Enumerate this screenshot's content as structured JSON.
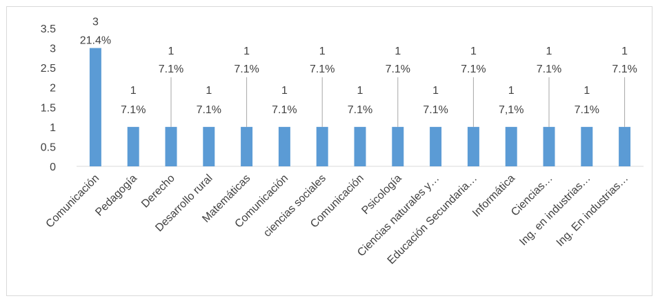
{
  "chart_data": {
    "type": "bar",
    "title": "",
    "xlabel": "",
    "ylabel": "",
    "ylim": [
      0,
      3.5
    ],
    "yticks": [
      0,
      0.5,
      1,
      1.5,
      2,
      2.5,
      3,
      3.5
    ],
    "ytick_labels": [
      "0",
      "0.5",
      "1",
      "1.5",
      "2",
      "2.5",
      "3",
      "3.5"
    ],
    "grid": true,
    "legend": "none",
    "bar_color": "#5b9bd5",
    "categories": [
      "Comunicación",
      "Pedagogía",
      "Derecho",
      "Desarrollo rural",
      "Matemáticas",
      "Comunicación",
      "ciencias sociales",
      "Comunicación",
      "Psicología",
      "Ciencias naturales y…",
      "Educación Secundaria…",
      "Informática",
      "Ciencias…",
      "Ing. en industrias…",
      "Ing. En industrias…"
    ],
    "values": [
      3,
      1,
      1,
      1,
      1,
      1,
      1,
      1,
      1,
      1,
      1,
      1,
      1,
      1,
      1
    ],
    "value_labels": [
      "3",
      "1",
      "1",
      "1",
      "1",
      "1",
      "1",
      "1",
      "1",
      "1",
      "1",
      "1",
      "1",
      "1",
      "1"
    ],
    "percent_labels": [
      "21.4%",
      "7.1%",
      "7.1%",
      "7.1%",
      "7.1%",
      "7.1%",
      "7.1%",
      "7.1%",
      "7.1%",
      "7.1%",
      "7.1%",
      "7,1%",
      "7.1%",
      "7.1%",
      "7.1%"
    ],
    "label_placement": [
      "above",
      "above",
      "elevated",
      "above",
      "elevated",
      "above",
      "elevated",
      "above",
      "elevated",
      "above",
      "elevated",
      "above",
      "elevated",
      "above",
      "elevated"
    ]
  }
}
